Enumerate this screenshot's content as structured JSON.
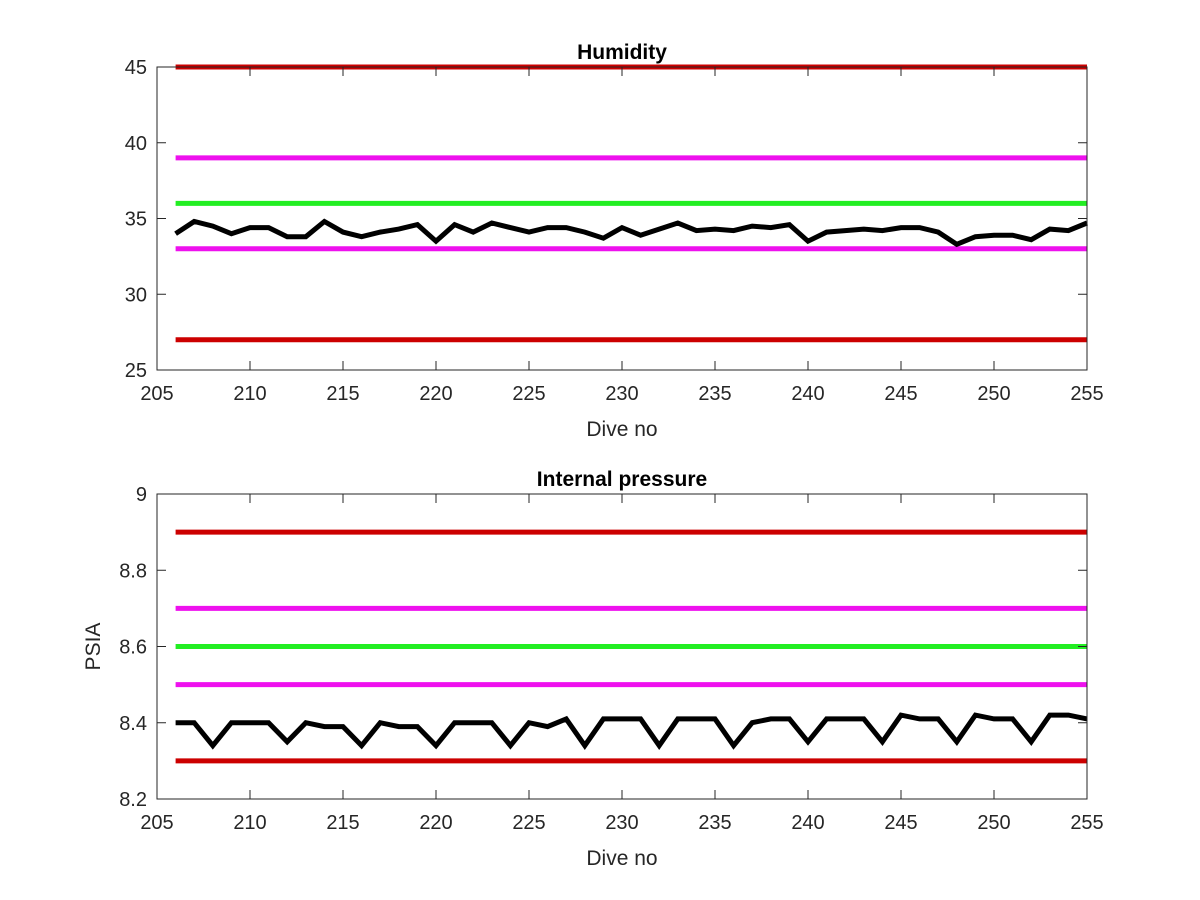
{
  "chart_data": [
    {
      "type": "line",
      "title": "Humidity",
      "xlabel": "Dive no",
      "ylabel": "",
      "xlim": [
        205,
        255
      ],
      "ylim": [
        25,
        45
      ],
      "xticks": [
        205,
        210,
        215,
        220,
        225,
        230,
        235,
        240,
        245,
        250,
        255
      ],
      "yticks": [
        25,
        30,
        35,
        40,
        45
      ],
      "grid": false,
      "thresholds": [
        {
          "value": 45,
          "color": "#cc0000"
        },
        {
          "value": 39,
          "color": "#ee11ee"
        },
        {
          "value": 36,
          "color": "#22ee22"
        },
        {
          "value": 33,
          "color": "#ee11ee"
        },
        {
          "value": 27,
          "color": "#cc0000"
        }
      ],
      "series": [
        {
          "color": "#000000",
          "x": [
            206,
            207,
            208,
            209,
            210,
            211,
            212,
            213,
            214,
            215,
            216,
            217,
            218,
            219,
            220,
            221,
            222,
            223,
            224,
            225,
            226,
            227,
            228,
            229,
            230,
            231,
            232,
            233,
            234,
            235,
            236,
            237,
            238,
            239,
            240,
            241,
            242,
            243,
            244,
            245,
            246,
            247,
            248,
            249,
            250,
            251,
            252,
            253,
            254,
            255
          ],
          "y": [
            34.0,
            34.8,
            34.5,
            34.0,
            34.4,
            34.4,
            33.8,
            33.8,
            34.8,
            34.1,
            33.8,
            34.1,
            34.3,
            34.6,
            33.5,
            34.6,
            34.1,
            34.7,
            34.4,
            34.1,
            34.4,
            34.4,
            34.1,
            33.7,
            34.4,
            33.9,
            34.3,
            34.7,
            34.2,
            34.3,
            34.2,
            34.5,
            34.4,
            34.6,
            33.5,
            34.1,
            34.2,
            34.3,
            34.2,
            34.4,
            34.4,
            34.1,
            33.3,
            33.8,
            33.9,
            33.9,
            33.6,
            34.3,
            34.2,
            34.7
          ]
        }
      ]
    },
    {
      "type": "line",
      "title": "Internal pressure",
      "xlabel": "Dive no",
      "ylabel": "PSIA",
      "xlim": [
        205,
        255
      ],
      "ylim": [
        8.2,
        9
      ],
      "xticks": [
        205,
        210,
        215,
        220,
        225,
        230,
        235,
        240,
        245,
        250,
        255
      ],
      "yticks": [
        8.2,
        8.4,
        8.6,
        8.8,
        9
      ],
      "grid": false,
      "thresholds": [
        {
          "value": 8.9,
          "color": "#cc0000"
        },
        {
          "value": 8.7,
          "color": "#ee11ee"
        },
        {
          "value": 8.6,
          "color": "#22ee22"
        },
        {
          "value": 8.5,
          "color": "#ee11ee"
        },
        {
          "value": 8.3,
          "color": "#cc0000"
        }
      ],
      "series": [
        {
          "color": "#000000",
          "x": [
            206,
            207,
            208,
            209,
            210,
            211,
            212,
            213,
            214,
            215,
            216,
            217,
            218,
            219,
            220,
            221,
            222,
            223,
            224,
            225,
            226,
            227,
            228,
            229,
            230,
            231,
            232,
            233,
            234,
            235,
            236,
            237,
            238,
            239,
            240,
            241,
            242,
            243,
            244,
            245,
            246,
            247,
            248,
            249,
            250,
            251,
            252,
            253,
            254,
            255
          ],
          "y": [
            8.4,
            8.4,
            8.34,
            8.4,
            8.4,
            8.4,
            8.35,
            8.4,
            8.39,
            8.39,
            8.34,
            8.4,
            8.39,
            8.39,
            8.34,
            8.4,
            8.4,
            8.4,
            8.34,
            8.4,
            8.39,
            8.41,
            8.34,
            8.41,
            8.41,
            8.41,
            8.34,
            8.41,
            8.41,
            8.41,
            8.34,
            8.4,
            8.41,
            8.41,
            8.35,
            8.41,
            8.41,
            8.41,
            8.35,
            8.42,
            8.41,
            8.41,
            8.35,
            8.42,
            8.41,
            8.41,
            8.35,
            8.42,
            8.42,
            8.41
          ]
        }
      ]
    }
  ]
}
